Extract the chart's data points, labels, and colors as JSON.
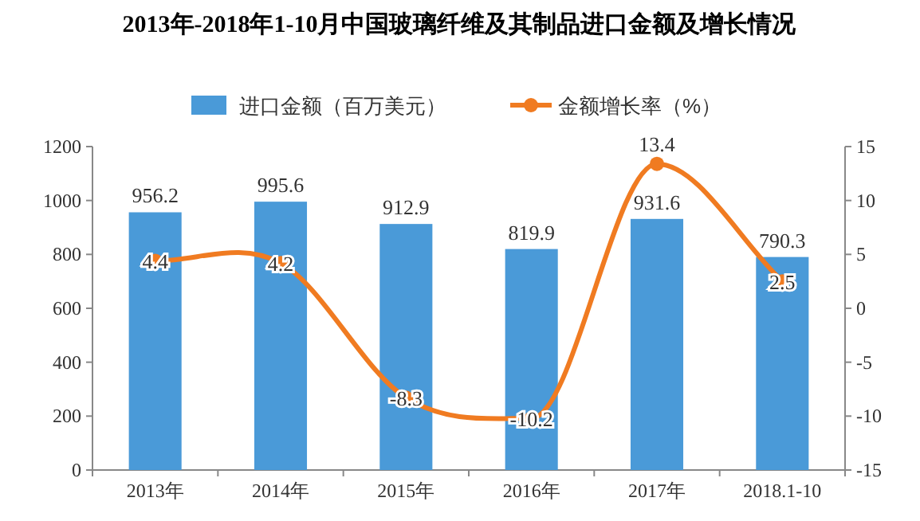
{
  "chart_data": {
    "type": "bar",
    "title": "2013年-2018年1-10月中国玻璃纤维及其制品进口金额及增长情况",
    "categories": [
      "2013年",
      "2014年",
      "2015年",
      "2016年",
      "2017年",
      "2018.1-10"
    ],
    "series": [
      {
        "name": "进口金额（百万美元）",
        "color": "#4a9ad8",
        "values": [
          956.2,
          995.6,
          912.9,
          819.9,
          931.6,
          790.3
        ]
      },
      {
        "name": "金额增长率（%）",
        "type": "line",
        "axis": "y2",
        "color": "#f07b21",
        "values": [
          4.4,
          4.2,
          -8.3,
          -10.2,
          13.4,
          2.5
        ]
      }
    ],
    "ylim": [
      0,
      1200
    ],
    "yticks": [
      0,
      200,
      400,
      600,
      800,
      1000,
      1200
    ],
    "y2lim": [
      -15,
      15
    ],
    "y2ticks": [
      -15,
      -10,
      -5,
      0,
      5,
      10,
      15
    ],
    "legend": "top",
    "data_labels": true,
    "marker": "circle"
  }
}
